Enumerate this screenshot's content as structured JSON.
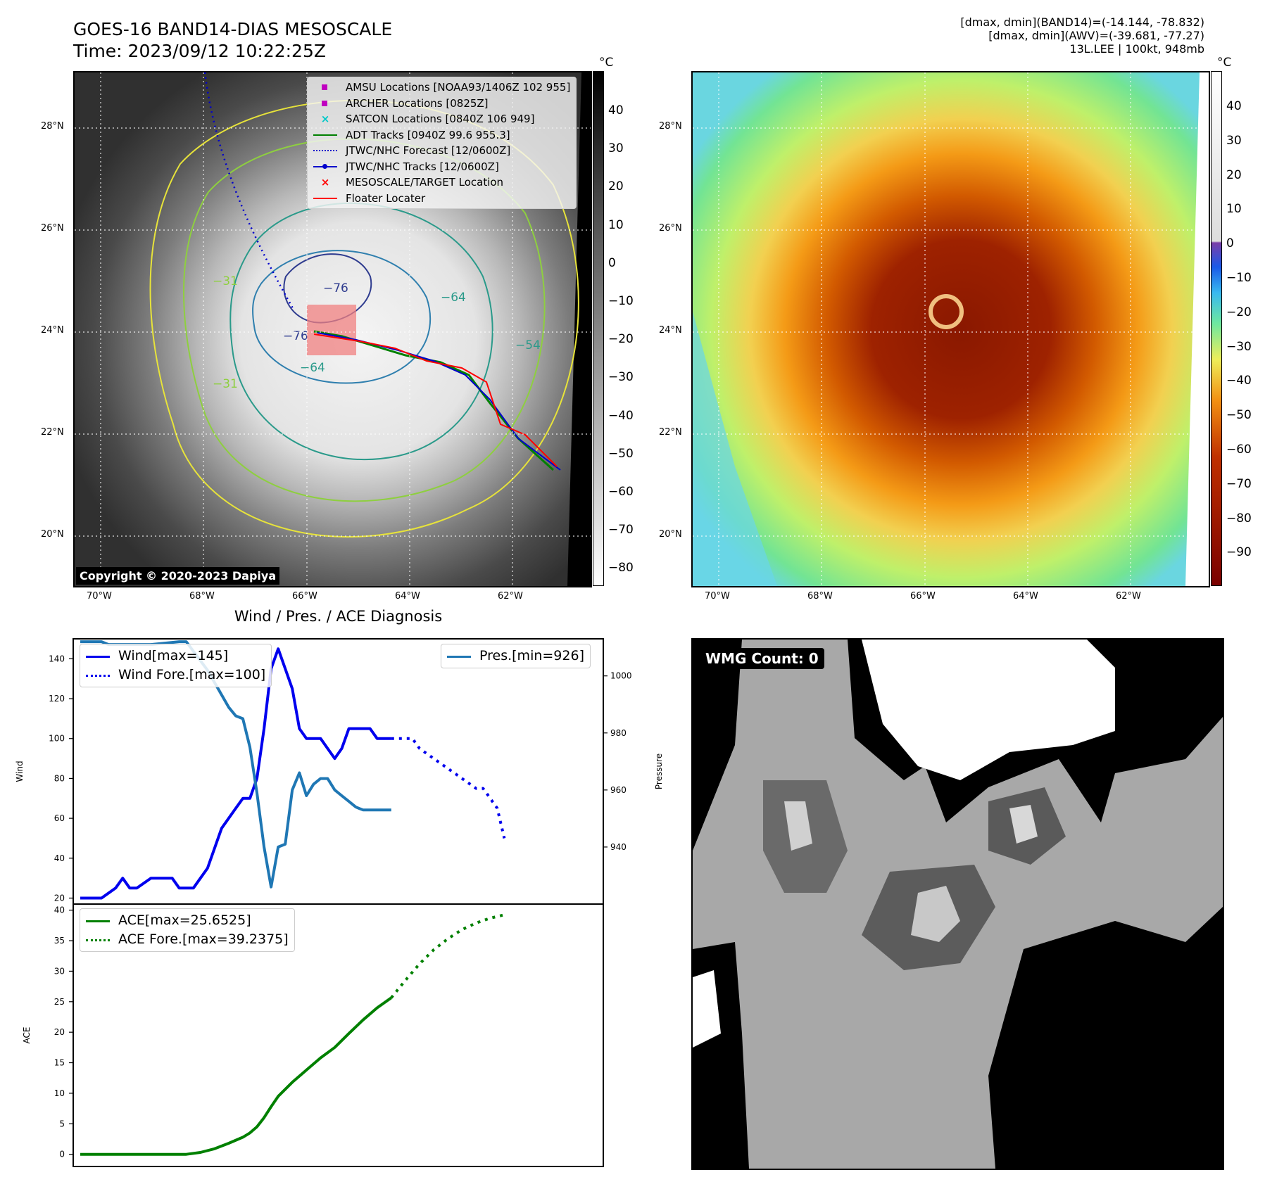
{
  "header": {
    "title_line1": "GOES-16 BAND14-DIAS MESOSCALE",
    "title_line2": "Time: 2023/09/12 10:22:25Z",
    "info_line1": "[dmax, dmin](BAND14)=(-14.144, -78.832)",
    "info_line2": "[dmax, dmin](AWV)=(-39.681, -77.27)",
    "info_line3": "13L.LEE | 100kt, 948mb"
  },
  "map_axes": {
    "lon_labels": [
      "70°W",
      "68°W",
      "66°W",
      "64°W",
      "62°W"
    ],
    "lat_labels": [
      "28°N",
      "26°N",
      "24°N",
      "22°N",
      "20°N"
    ]
  },
  "ir_panel": {
    "colorbar_unit": "°C",
    "colorbar_ticks": [
      "40",
      "30",
      "20",
      "10",
      "0",
      "−10",
      "−20",
      "−30",
      "−40",
      "−50",
      "−60",
      "−70",
      "−80"
    ],
    "copyright": "Copyright © 2020-2023 Dapiya",
    "contour_labels": [
      "−31",
      "−76",
      "−64",
      "−54",
      "−76",
      "−64",
      "−31"
    ],
    "legend": [
      {
        "label": "AMSU Locations [NOAA93/1406Z 102 955]",
        "color": "#c000c0",
        "icon": "square-marker"
      },
      {
        "label": "ARCHER Locations [0825Z]",
        "color": "#c000c0",
        "icon": "square-marker"
      },
      {
        "label": "SATCON Locations [0840Z 106 949]",
        "color": "#00c8c8",
        "icon": "x-marker"
      },
      {
        "label": "ADT Tracks [0940Z 99.6 955.3]",
        "color": "#008000",
        "icon": "solid-line"
      },
      {
        "label": "JTWC/NHC Forecast [12/0600Z]",
        "color": "#0000cc",
        "icon": "dotted-line"
      },
      {
        "label": "JTWC/NHC Tracks [12/0600Z]",
        "color": "#0000cc",
        "icon": "line-with-dot"
      },
      {
        "label": "MESOSCALE/TARGET Location",
        "color": "#ff0000",
        "icon": "x-marker"
      },
      {
        "label": "Floater Locater",
        "color": "#ff0000",
        "icon": "solid-line"
      }
    ]
  },
  "awv_panel": {
    "colorbar_unit": "°C",
    "colorbar_ticks": [
      "40",
      "30",
      "20",
      "10",
      "0",
      "−10",
      "−20",
      "−30",
      "−40",
      "−50",
      "−60",
      "−70",
      "−80",
      "−90"
    ]
  },
  "diag_title": "Wind / Pres. / ACE Diagnosis",
  "wmg": {
    "label": "WMG Count: 0"
  },
  "chart_data": [
    {
      "type": "line",
      "title": "Wind / Pres. / ACE Diagnosis",
      "ylabel": "Wind",
      "ylabel_right": "Pressure",
      "ylim": [
        17,
        150
      ],
      "ylim_right": [
        920,
        1013
      ],
      "xlim": [
        -1,
        74
      ],
      "yticks": [
        20,
        40,
        60,
        80,
        100,
        120,
        140
      ],
      "yticks_right": [
        940,
        960,
        980,
        1000
      ],
      "series": [
        {
          "name": "Wind[max=145]",
          "color": "#0000ee",
          "style": "solid",
          "axis": "left",
          "x": [
            0,
            3,
            5,
            6,
            7,
            8,
            10,
            12,
            13,
            14,
            15,
            16,
            17,
            18,
            20,
            22,
            23,
            24,
            25,
            26,
            27,
            28,
            29,
            30,
            31,
            32,
            33,
            34,
            35,
            36,
            37,
            38,
            39,
            40,
            41,
            42,
            43,
            44
          ],
          "values": [
            20,
            20,
            25,
            30,
            25,
            25,
            30,
            30,
            30,
            25,
            25,
            25,
            30,
            35,
            55,
            65,
            70,
            70,
            80,
            105,
            135,
            145,
            135,
            125,
            105,
            100,
            100,
            100,
            95,
            90,
            95,
            105,
            105,
            105,
            105,
            100,
            100,
            100
          ]
        },
        {
          "name": "Wind Fore.[max=100]",
          "color": "#0000ee",
          "style": "dotted",
          "axis": "left",
          "x": [
            44,
            47,
            48,
            50,
            52,
            54,
            56,
            57,
            58,
            59,
            60
          ],
          "values": [
            100,
            100,
            95,
            90,
            85,
            80,
            75,
            75,
            70,
            65,
            50
          ]
        },
        {
          "name": "Pres.[min=926]",
          "color": "#1f77b4",
          "style": "solid",
          "axis": "right",
          "x": [
            0,
            3,
            4,
            5,
            10,
            14,
            15,
            18,
            21,
            22,
            23,
            24,
            25,
            26,
            27,
            28,
            29,
            30,
            31,
            32,
            33,
            34,
            35,
            36,
            37,
            38,
            39,
            40,
            41,
            42,
            43,
            44
          ],
          "values": [
            1012,
            1012,
            1011,
            1011,
            1011,
            1012,
            1012,
            1002,
            989,
            986,
            985,
            975,
            959,
            940,
            926,
            940,
            941,
            960,
            966,
            958,
            962,
            964,
            964,
            960,
            958,
            956,
            954,
            953,
            953,
            953,
            953,
            953
          ]
        }
      ]
    },
    {
      "type": "line",
      "ylabel": "ACE",
      "ylim": [
        -2,
        41
      ],
      "xlim": [
        -1,
        74
      ],
      "yticks": [
        0,
        5,
        10,
        15,
        20,
        25,
        30,
        35,
        40
      ],
      "series": [
        {
          "name": "ACE[max=25.6525]",
          "color": "#008000",
          "style": "solid",
          "x": [
            0,
            15,
            17,
            19,
            21,
            23,
            24,
            25,
            26,
            27,
            28,
            30,
            32,
            34,
            36,
            38,
            40,
            42,
            44
          ],
          "values": [
            0,
            0,
            0.3,
            0.9,
            1.8,
            2.8,
            3.5,
            4.5,
            6,
            7.8,
            9.5,
            11.8,
            13.8,
            15.8,
            17.5,
            19.8,
            22,
            24,
            25.65
          ]
        },
        {
          "name": "ACE Fore.[max=39.2375]",
          "color": "#008000",
          "style": "dotted",
          "x": [
            44,
            46,
            48,
            50,
            52,
            54,
            56,
            58,
            60
          ],
          "values": [
            25.65,
            28.5,
            31.2,
            33.5,
            35.3,
            36.8,
            37.9,
            38.7,
            39.24
          ]
        }
      ]
    }
  ]
}
